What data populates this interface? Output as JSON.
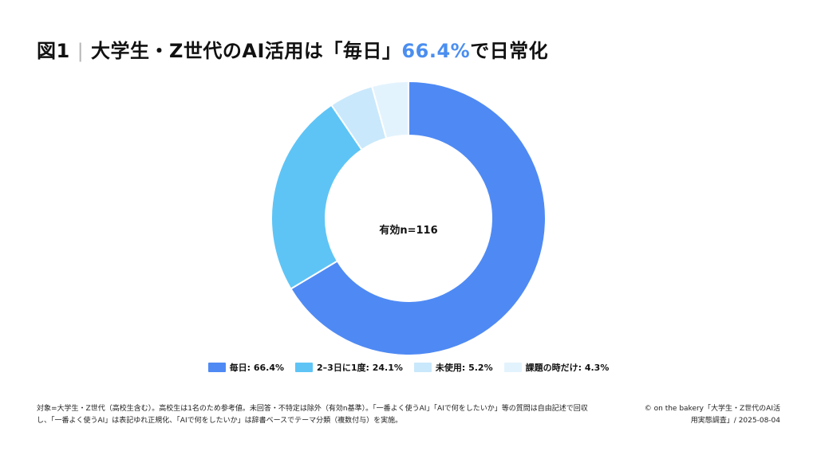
{
  "title": {
    "prefix": "図1",
    "separator": "|",
    "main": "大学生・Z世代のAI活用は「毎日」",
    "highlight": "66.4%",
    "suffix": "で日常化"
  },
  "colors": {
    "highlight": "#4a8ef0"
  },
  "chart_data": {
    "type": "pie",
    "variant": "donut",
    "center_label": "有効n=116",
    "legend_position": "bottom",
    "slices": [
      {
        "label": "毎日",
        "value": 66.4,
        "color": "#4f8af4"
      },
      {
        "label": "2–3日に1度",
        "value": 24.1,
        "color": "#5ec4f6"
      },
      {
        "label": "未使用",
        "value": 5.2,
        "color": "#c9e8fb"
      },
      {
        "label": "課題の時だけ",
        "value": 4.3,
        "color": "#e3f3fd"
      }
    ],
    "legend": [
      "毎日: 66.4%",
      "2–3日に1度: 24.1%",
      "未使用: 5.2%",
      "課題の時だけ: 4.3%"
    ]
  },
  "footnote": {
    "line1": "対象=大学生・Z世代（高校生含む）。高校生は1名のため参考値。未回答・不特定は除外（有効n基準）。「一番よく使うAI」「AIで何をしたいか」等の質問は自由記述で回収",
    "line2": "し、「一番よく使うAI」は表記ゆれ正規化、「AIで何をしたいか」は辞書ベースでテーマ分類（複数付与）を実施。"
  },
  "credit": {
    "line1": "© on the bakery「大学生・Z世代のAI活",
    "line2": "用実態調査」/ 2025-08-04"
  }
}
